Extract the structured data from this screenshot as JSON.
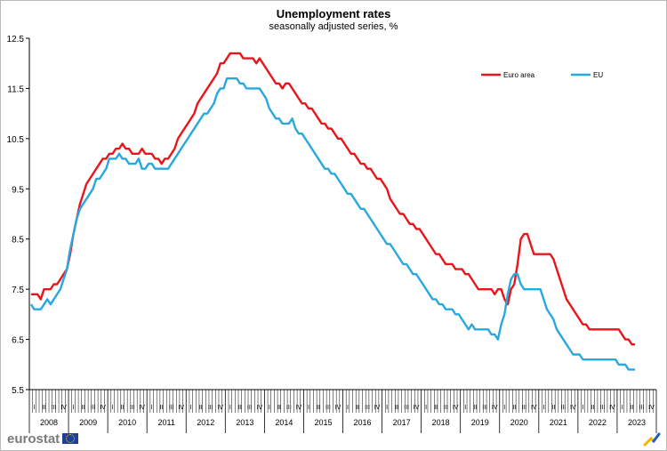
{
  "chart_data": {
    "type": "line",
    "title": "Unemployment rates",
    "subtitle": "seasonally adjusted series, %",
    "xlabel": "",
    "ylabel": "",
    "ylim": [
      5.5,
      12.5
    ],
    "yticks": [
      "5.5",
      "6.5",
      "7.5",
      "8.5",
      "9.5",
      "10.5",
      "11.5",
      "12.5"
    ],
    "grid": false,
    "legend_position": "top-right",
    "quarter_labels": [
      "I",
      "II",
      "III",
      "IV"
    ],
    "years": [
      "2008",
      "2009",
      "2010",
      "2011",
      "2012",
      "2013",
      "2014",
      "2015",
      "2016",
      "2017",
      "2018",
      "2019",
      "2020",
      "2021",
      "2022",
      "2023"
    ],
    "x_frequency": "monthly",
    "x_start": "2008-01",
    "x_end": "2023-06",
    "series": [
      {
        "name": "Euro area",
        "color": "#e8161c",
        "values": [
          7.4,
          7.4,
          7.4,
          7.3,
          7.5,
          7.5,
          7.5,
          7.6,
          7.6,
          7.7,
          7.8,
          7.9,
          8.2,
          8.6,
          8.9,
          9.2,
          9.4,
          9.6,
          9.7,
          9.8,
          9.9,
          10.0,
          10.1,
          10.1,
          10.2,
          10.2,
          10.3,
          10.3,
          10.4,
          10.3,
          10.3,
          10.2,
          10.2,
          10.2,
          10.3,
          10.2,
          10.2,
          10.2,
          10.1,
          10.1,
          10.0,
          10.1,
          10.1,
          10.2,
          10.3,
          10.5,
          10.6,
          10.7,
          10.8,
          10.9,
          11.0,
          11.2,
          11.3,
          11.4,
          11.5,
          11.6,
          11.7,
          11.8,
          12.0,
          12.0,
          12.1,
          12.2,
          12.2,
          12.2,
          12.2,
          12.1,
          12.1,
          12.1,
          12.1,
          12.0,
          12.1,
          12.0,
          11.9,
          11.8,
          11.7,
          11.6,
          11.6,
          11.5,
          11.6,
          11.6,
          11.5,
          11.4,
          11.3,
          11.2,
          11.2,
          11.1,
          11.1,
          11.0,
          10.9,
          10.8,
          10.8,
          10.7,
          10.7,
          10.6,
          10.5,
          10.5,
          10.4,
          10.3,
          10.2,
          10.2,
          10.1,
          10.0,
          10.0,
          9.9,
          9.9,
          9.8,
          9.7,
          9.7,
          9.6,
          9.5,
          9.3,
          9.2,
          9.1,
          9.0,
          9.0,
          8.9,
          8.8,
          8.8,
          8.7,
          8.7,
          8.6,
          8.5,
          8.4,
          8.3,
          8.2,
          8.2,
          8.1,
          8.0,
          8.0,
          8.0,
          7.9,
          7.9,
          7.9,
          7.8,
          7.8,
          7.7,
          7.6,
          7.5,
          7.5,
          7.5,
          7.5,
          7.5,
          7.4,
          7.5,
          7.5,
          7.3,
          7.2,
          7.5,
          7.6,
          8.0,
          8.5,
          8.6,
          8.6,
          8.4,
          8.2,
          8.2,
          8.2,
          8.2,
          8.2,
          8.2,
          8.1,
          7.9,
          7.7,
          7.5,
          7.3,
          7.2,
          7.1,
          7.0,
          6.9,
          6.8,
          6.8,
          6.7,
          6.7,
          6.7,
          6.7,
          6.7,
          6.7,
          6.7,
          6.7,
          6.7,
          6.7,
          6.6,
          6.5,
          6.5,
          6.4,
          6.4
        ]
      },
      {
        "name": "EU",
        "color": "#29a8e0",
        "values": [
          7.2,
          7.1,
          7.1,
          7.1,
          7.2,
          7.3,
          7.2,
          7.3,
          7.4,
          7.5,
          7.7,
          7.9,
          8.3,
          8.6,
          8.9,
          9.1,
          9.2,
          9.3,
          9.4,
          9.5,
          9.7,
          9.7,
          9.8,
          9.9,
          10.1,
          10.1,
          10.1,
          10.2,
          10.1,
          10.1,
          10.0,
          10.0,
          10.0,
          10.1,
          9.9,
          9.9,
          10.0,
          10.0,
          9.9,
          9.9,
          9.9,
          9.9,
          9.9,
          10.0,
          10.1,
          10.2,
          10.3,
          10.4,
          10.5,
          10.6,
          10.7,
          10.8,
          10.9,
          11.0,
          11.0,
          11.1,
          11.2,
          11.4,
          11.5,
          11.5,
          11.7,
          11.7,
          11.7,
          11.7,
          11.6,
          11.6,
          11.5,
          11.5,
          11.5,
          11.5,
          11.5,
          11.4,
          11.3,
          11.1,
          11.0,
          10.9,
          10.9,
          10.8,
          10.8,
          10.8,
          10.9,
          10.7,
          10.6,
          10.6,
          10.5,
          10.4,
          10.3,
          10.2,
          10.1,
          10.0,
          9.9,
          9.9,
          9.8,
          9.8,
          9.7,
          9.6,
          9.5,
          9.4,
          9.4,
          9.3,
          9.2,
          9.1,
          9.1,
          9.0,
          8.9,
          8.8,
          8.7,
          8.6,
          8.5,
          8.4,
          8.4,
          8.3,
          8.2,
          8.1,
          8.0,
          8.0,
          7.9,
          7.8,
          7.8,
          7.7,
          7.6,
          7.5,
          7.4,
          7.3,
          7.3,
          7.2,
          7.2,
          7.1,
          7.1,
          7.1,
          7.0,
          7.0,
          6.9,
          6.8,
          6.7,
          6.8,
          6.7,
          6.7,
          6.7,
          6.7,
          6.7,
          6.6,
          6.6,
          6.5,
          6.8,
          7.0,
          7.4,
          7.7,
          7.8,
          7.8,
          7.6,
          7.5,
          7.5,
          7.5,
          7.5,
          7.5,
          7.5,
          7.3,
          7.1,
          7.0,
          6.9,
          6.7,
          6.6,
          6.5,
          6.4,
          6.3,
          6.2,
          6.2,
          6.2,
          6.1,
          6.1,
          6.1,
          6.1,
          6.1,
          6.1,
          6.1,
          6.1,
          6.1,
          6.1,
          6.1,
          6.0,
          6.0,
          6.0,
          5.9,
          5.9,
          5.9
        ]
      }
    ]
  },
  "branding": {
    "logo_text": "eurostat"
  }
}
